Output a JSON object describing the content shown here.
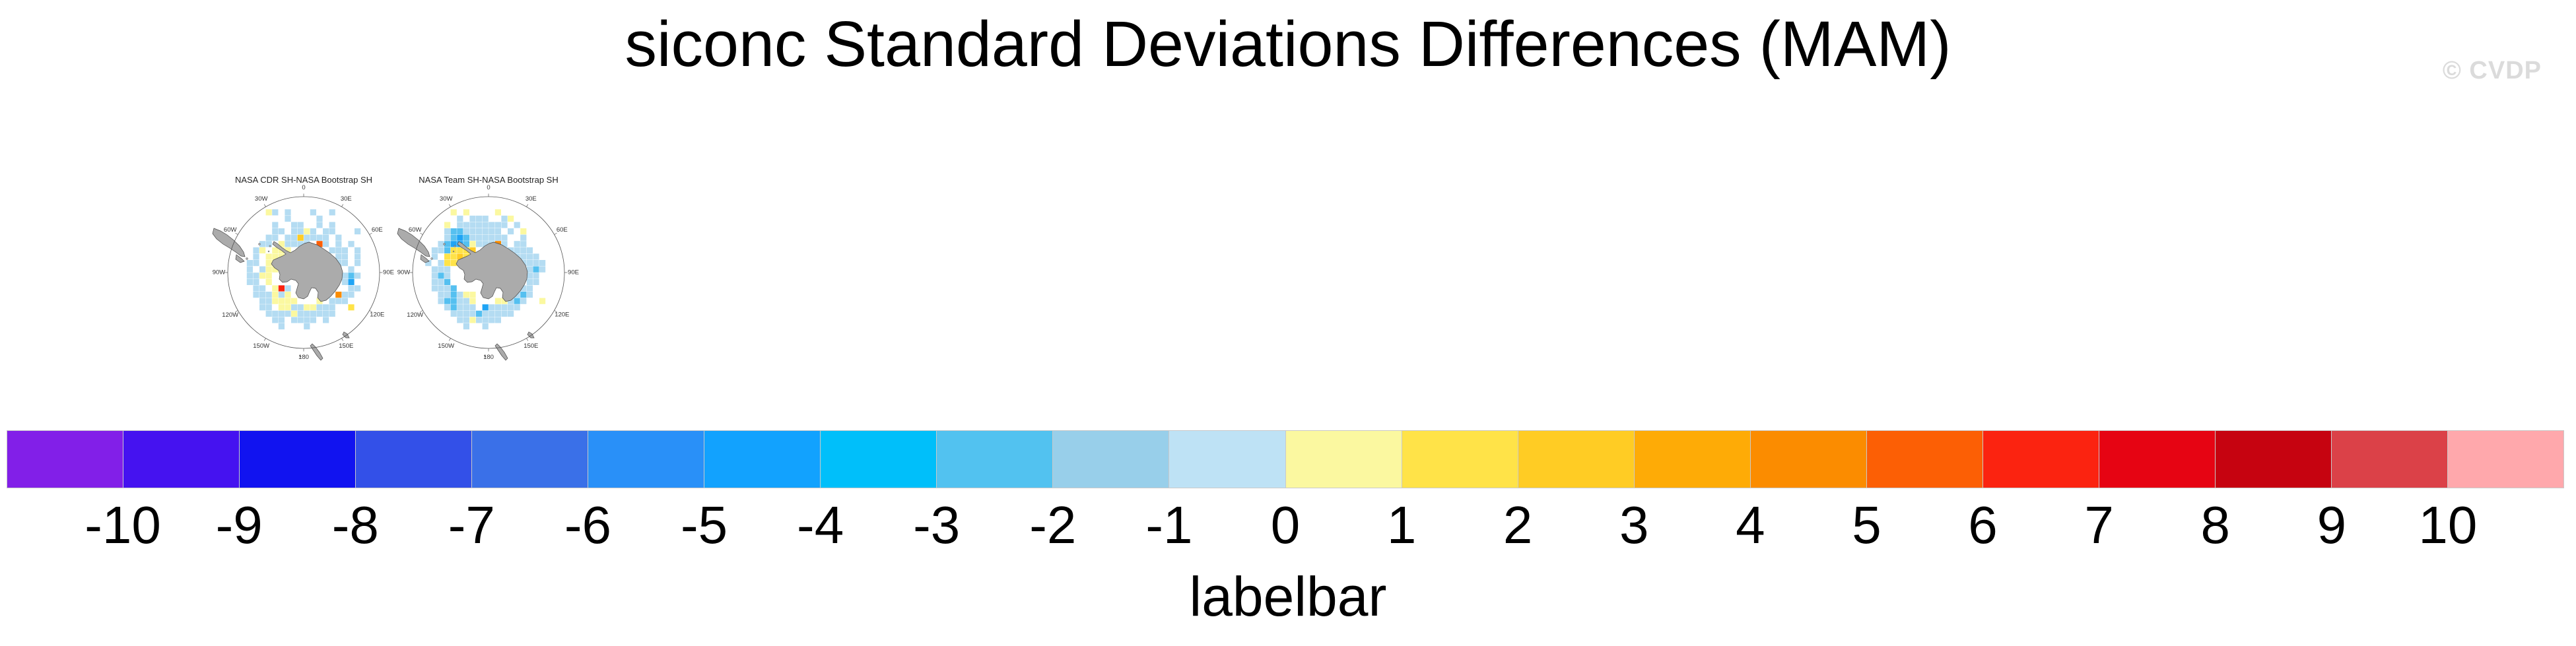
{
  "title": "siconc Standard Deviations Differences (MAM)",
  "watermark": "© CVDP",
  "panels": [
    {
      "title": "NASA CDR SH-NASA Bootstrap SH",
      "lon_labels": [
        "0",
        "30E",
        "60E",
        "90E",
        "120E",
        "150E",
        "180",
        "150W",
        "120W",
        "90W",
        "60W",
        "30W"
      ],
      "grid_rows": [
        "........................",
        "........................",
        "......yb.b...b..b.......",
        ".........b....b.........",
        ".......b..bb..b.b.......",
        ".......bb.bbyb.bb...b...",
        "......bb.bbGbbbb.b......",
        ".....bb.ybbbb.ob.b.b....",
        "....by.yyy......bbb.b...",
        "....b.yyy........bb.b...",
        "...bb.yy.........bb.b...",
        "...b.byy.........b.b....",
        "...bbyy...........bsb...",
        "...bb.y...........bd....",
        "....bb.yRb.........bb...",
        "....bbbyby.......Obb....",
        ".....bbyyyy...y.bbb.....",
        ".....bb.yybbyybbb..Y....",
        "......bbbbybbbbbb.......",
        ".......bb.bbbb.b........",
        "........b...b...........",
        "........................",
        "........................",
        "........................"
      ]
    },
    {
      "title": "NASA Team SH-NASA Bootstrap SH",
      "lon_labels": [
        "0",
        "30E",
        "60E",
        "90E",
        "120E",
        "150E",
        "180",
        "150W",
        "120W",
        "90W",
        "60W",
        "30W"
      ],
      "grid_rows": [
        "........................",
        "........................",
        "......y.y....y..........",
        ".......b.bbb..by........",
        ".....y.bbbbbbbb.b.......",
        ".....bssbbbbbb.b.y......",
        ".....bsdsbbbbbb..b......",
        "....bsddsybbbOb.bb......",
        "...bbsYYYG.....bbbb.....",
        "...b.YYGYY......bbbb....",
        "..b.bYYY.........bbbb...",
        "...bbb............bsb...",
        "...bsb............bb....",
        "...bbs............bb....",
        "...bbbs.........ybb.....",
        "....bbsbyy.....ybsb.....",
        "....bssbby...yybsb..y...",
        ".....bsbbb.dbbbbb.......",
        "......bbbbsbbbbb........",
        ".......bbybbbb..........",
        "........b..b............",
        "........................",
        "........................",
        "........................"
      ]
    }
  ],
  "colorbar": {
    "label": "labelbar",
    "tick_labels": [
      "-10",
      "-9",
      "-8",
      "-7",
      "-6",
      "-5",
      "-4",
      "-3",
      "-2",
      "-1",
      "0",
      "1",
      "2",
      "3",
      "4",
      "5",
      "6",
      "7",
      "8",
      "9",
      "10"
    ],
    "cell_colors": [
      "#821FE8",
      "#4512F0",
      "#1113F0",
      "#3350E8",
      "#3A70E8",
      "#2990F8",
      "#12A2FE",
      "#00BFFA",
      "#52C2F0",
      "#98CFEA",
      "#BEE2F5",
      "#FBF8A0",
      "#FFE348",
      "#FFCC24",
      "#FEAB06",
      "#FB8C00",
      "#FC5F05",
      "#FB2310",
      "#E60413",
      "#C60310",
      "#DB4148",
      "#FFA8AC"
    ]
  },
  "map_style": {
    "land_color": "#ABABAB",
    "coast_color": "#4A4A4A",
    "circle_color": "#555555",
    "label_color": "#333333",
    "cell_palette": {
      "b": "#B4DCF2",
      "s": "#55C0F0",
      "d": "#1FA4F5",
      "y": "#FBF8A0",
      "Y": "#FFE348",
      "G": "#FFCC24",
      "O": "#FB8C00",
      "o": "#FC5F05",
      "R": "#FB2310"
    }
  },
  "chart_data": {
    "type": "heatmap",
    "title": "siconc Standard Deviations Differences (MAM)",
    "panels": [
      "NASA CDR SH-NASA Bootstrap SH",
      "NASA Team SH-NASA Bootstrap SH"
    ],
    "projection": "south-polar stereographic (Antarctica centered)",
    "levels": [
      -10,
      -9,
      -8,
      -7,
      -6,
      -5,
      -4,
      -3,
      -2,
      -1,
      0,
      1,
      2,
      3,
      4,
      5,
      6,
      7,
      8,
      9,
      10
    ],
    "level_colors": [
      "#821FE8",
      "#4512F0",
      "#1113F0",
      "#3350E8",
      "#3A70E8",
      "#2990F8",
      "#12A2FE",
      "#00BFFA",
      "#52C2F0",
      "#98CFEA",
      "#BEE2F5",
      "#FBF8A0",
      "#FFE348",
      "#FFCC24",
      "#FEAB06",
      "#FB8C00",
      "#FC5F05",
      "#FB2310",
      "#E60413",
      "#C60310",
      "#DB4148",
      "#FFA8AC"
    ],
    "colorbar_label": "labelbar",
    "legend_position": "bottom",
    "description": "Two small south-polar maps of sea-ice concentration standard-deviation differences (mostly -1 to +1 around the Antarctic coast, scattered yellow/orange/red anomalies), sharing a 22-color labelbar from -10 to 10."
  }
}
